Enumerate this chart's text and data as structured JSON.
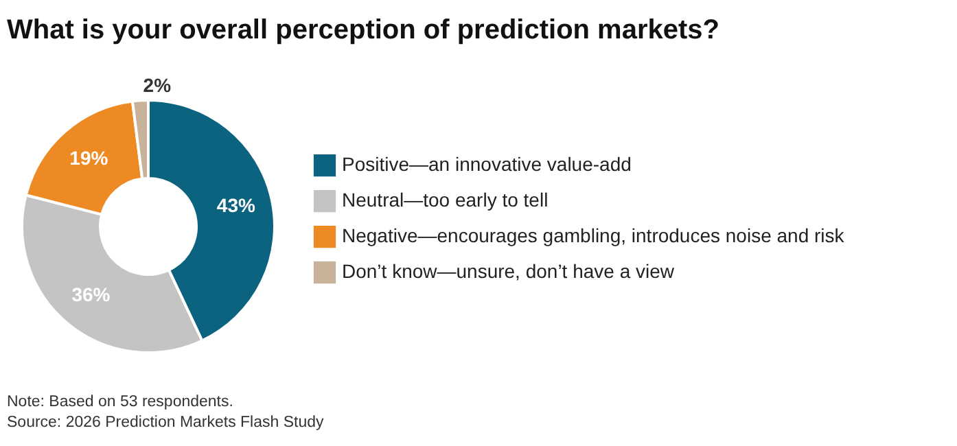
{
  "chart_data": {
    "type": "donut",
    "title": "What is your overall perception of prediction markets?",
    "categories": [
      "Positive—an innovative value-add",
      "Neutral—too early to tell",
      "Negative—encourages gambling, introduces noise and risk",
      "Don’t know—unsure, don’t have a view"
    ],
    "values": [
      43,
      36,
      19,
      2
    ],
    "colors": [
      "#0b6380",
      "#c4c4c4",
      "#ee8a24",
      "#c8b39a"
    ],
    "value_labels": [
      "43%",
      "36%",
      "19%",
      "2%"
    ],
    "legend": "right",
    "annotations": [
      "Note: Based on 53 respondents.",
      "Source: 2026 Prediction Markets Flash Study"
    ]
  }
}
